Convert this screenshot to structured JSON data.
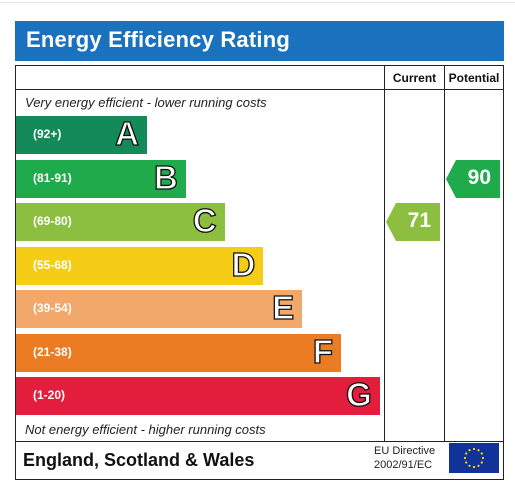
{
  "title": "Energy Efficiency Rating",
  "columns": {
    "current": "Current",
    "potential": "Potential"
  },
  "notes": {
    "top": "Very energy efficient - lower running costs",
    "bottom": "Not energy efficient - higher running costs"
  },
  "footer": {
    "region": "England, Scotland & Wales",
    "directive_line1": "EU Directive",
    "directive_line2": "2002/91/EC"
  },
  "chart_data": {
    "type": "bar",
    "categories": [
      "A",
      "B",
      "C",
      "D",
      "E",
      "F",
      "G"
    ],
    "bands": [
      {
        "letter": "A",
        "range": "(92+)",
        "color": "#138a57"
      },
      {
        "letter": "B",
        "range": "(81-91)",
        "color": "#1faa4b"
      },
      {
        "letter": "C",
        "range": "(69-80)",
        "color": "#8cbf3f"
      },
      {
        "letter": "D",
        "range": "(55-68)",
        "color": "#f5cc16"
      },
      {
        "letter": "E",
        "range": "(39-54)",
        "color": "#f2a86b"
      },
      {
        "letter": "F",
        "range": "(21-38)",
        "color": "#ec7c23"
      },
      {
        "letter": "G",
        "range": "(1-20)",
        "color": "#e31d3c"
      }
    ],
    "current": {
      "value": 71,
      "band": "C",
      "color": "#8cbf3f"
    },
    "potential": {
      "value": 90,
      "band": "B",
      "color": "#1faa4b"
    }
  }
}
